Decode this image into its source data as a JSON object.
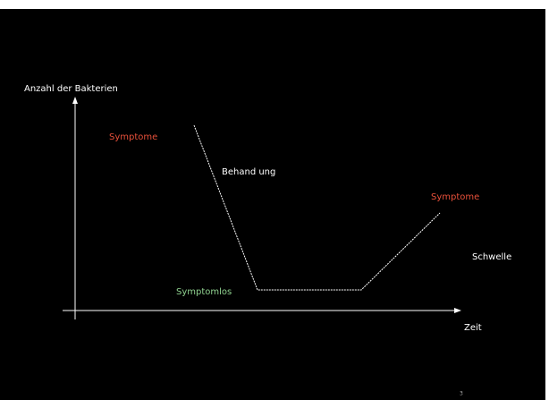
{
  "axes": {
    "y_label": "Anzahl der Bakterien",
    "x_label": "Zeit"
  },
  "labels": {
    "symptoms_start": "Symptome",
    "treatment": "Behand ung",
    "symptoms_end": "Symptome",
    "threshold": "Schwelle",
    "symptomless": "Symptomlos"
  },
  "page_number": "3"
}
